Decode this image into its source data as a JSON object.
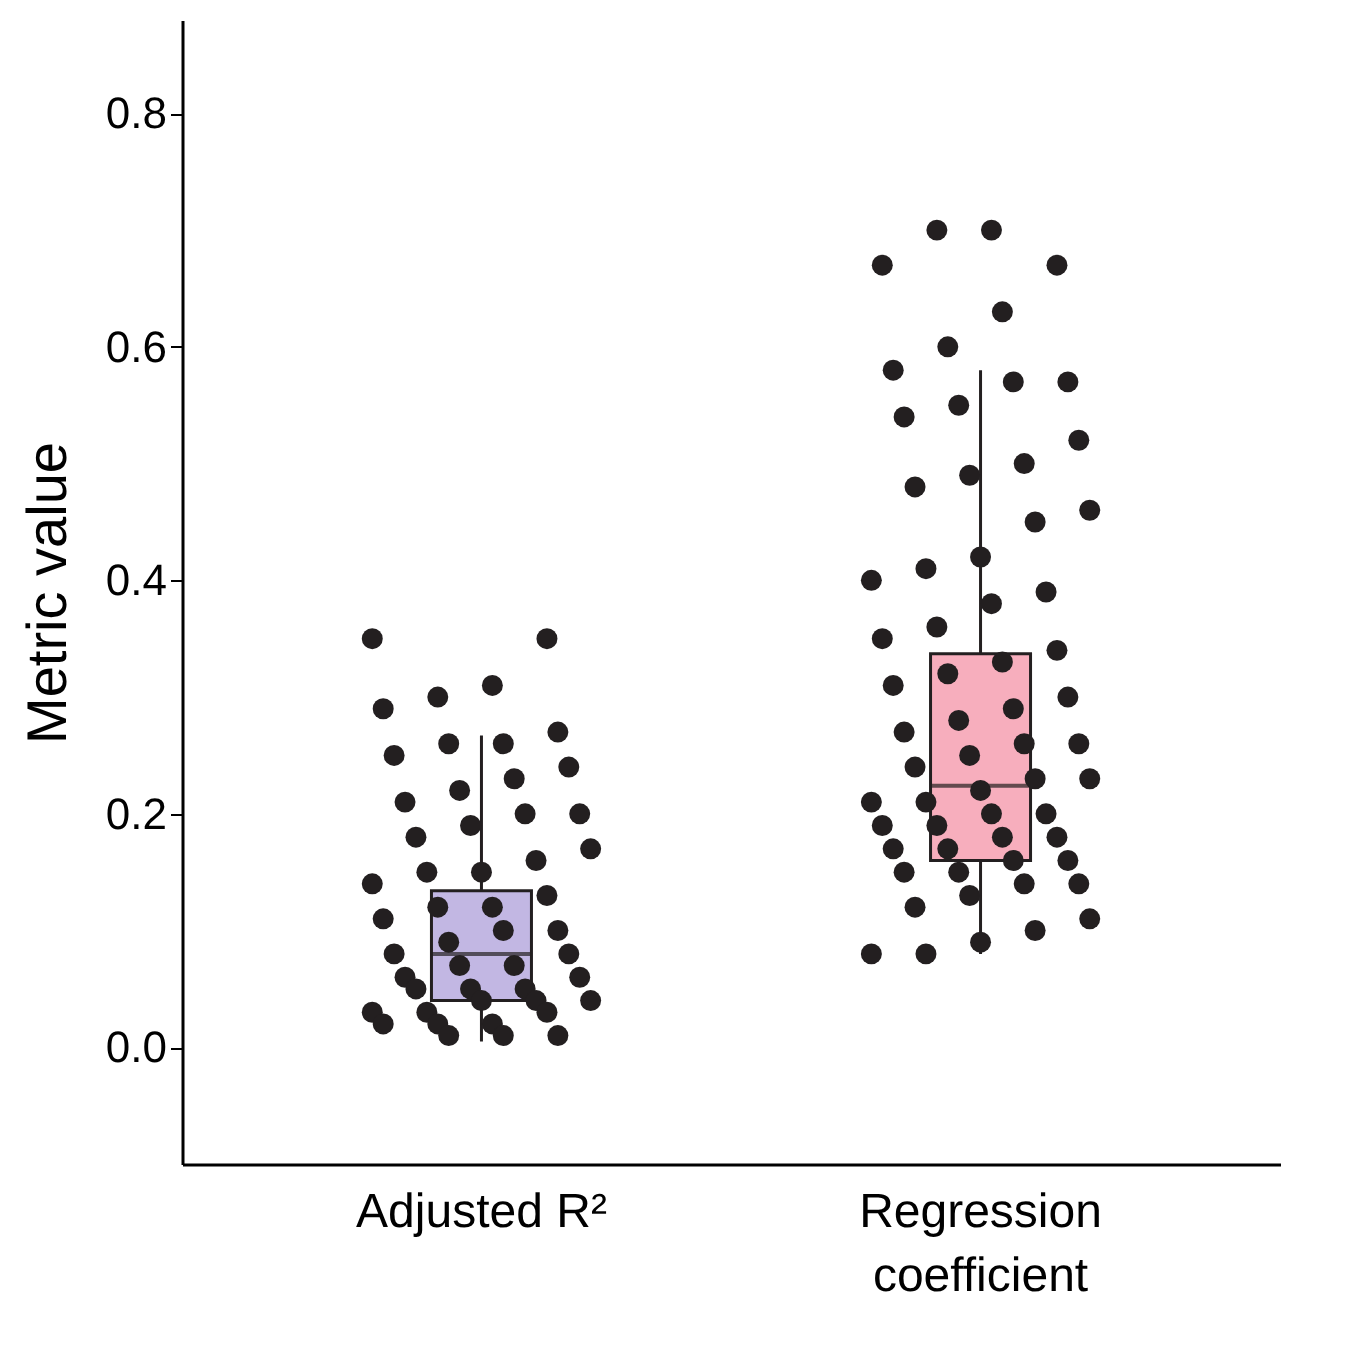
{
  "chart_data": {
    "type": "box",
    "ylabel": "Metric value",
    "categories": [
      "Adjusted R²",
      "Regression coefficient"
    ],
    "colors": [
      "#c2b7e3",
      "#f7aebd"
    ],
    "boxes": [
      {
        "low": 0.005,
        "q1": 0.04,
        "median": 0.08,
        "q3": 0.134,
        "high": 0.267
      },
      {
        "low": 0.08,
        "q1": 0.16,
        "median": 0.224,
        "q3": 0.337,
        "high": 0.58
      }
    ],
    "series": [
      {
        "type": "scatter",
        "color": "#231f20",
        "x": [
          "Adjusted R²",
          "Adjusted R²",
          "Adjusted R²",
          "Adjusted R²",
          "Adjusted R²",
          "Adjusted R²",
          "Adjusted R²",
          "Adjusted R²",
          "Adjusted R²",
          "Adjusted R²",
          "Adjusted R²",
          "Adjusted R²",
          "Adjusted R²",
          "Adjusted R²",
          "Adjusted R²",
          "Adjusted R²",
          "Adjusted R²",
          "Adjusted R²",
          "Adjusted R²",
          "Adjusted R²",
          "Adjusted R²",
          "Adjusted R²",
          "Adjusted R²",
          "Adjusted R²",
          "Adjusted R²",
          "Adjusted R²",
          "Adjusted R²",
          "Adjusted R²",
          "Adjusted R²",
          "Adjusted R²",
          "Adjusted R²",
          "Adjusted R²",
          "Adjusted R²",
          "Adjusted R²",
          "Adjusted R²",
          "Adjusted R²",
          "Adjusted R²",
          "Adjusted R²",
          "Adjusted R²",
          "Adjusted R²",
          "Adjusted R²",
          "Adjusted R²",
          "Adjusted R²",
          "Adjusted R²",
          "Adjusted R²",
          "Adjusted R²",
          "Adjusted R²",
          "Adjusted R²",
          "Adjusted R²",
          "Adjusted R²"
        ],
        "values": [
          0.35,
          0.35,
          0.31,
          0.3,
          0.29,
          0.27,
          0.26,
          0.26,
          0.25,
          0.24,
          0.23,
          0.22,
          0.21,
          0.2,
          0.2,
          0.19,
          0.18,
          0.17,
          0.16,
          0.15,
          0.15,
          0.14,
          0.13,
          0.12,
          0.12,
          0.11,
          0.1,
          0.1,
          0.09,
          0.08,
          0.08,
          0.07,
          0.07,
          0.06,
          0.06,
          0.05,
          0.05,
          0.05,
          0.04,
          0.04,
          0.04,
          0.03,
          0.03,
          0.03,
          0.02,
          0.02,
          0.02,
          0.01,
          0.01,
          0.01
        ]
      },
      {
        "type": "scatter",
        "color": "#231f20",
        "x": [
          "Regression coefficient",
          "Regression coefficient",
          "Regression coefficient",
          "Regression coefficient",
          "Regression coefficient",
          "Regression coefficient",
          "Regression coefficient",
          "Regression coefficient",
          "Regression coefficient",
          "Regression coefficient",
          "Regression coefficient",
          "Regression coefficient",
          "Regression coefficient",
          "Regression coefficient",
          "Regression coefficient",
          "Regression coefficient",
          "Regression coefficient",
          "Regression coefficient",
          "Regression coefficient",
          "Regression coefficient",
          "Regression coefficient",
          "Regression coefficient",
          "Regression coefficient",
          "Regression coefficient",
          "Regression coefficient",
          "Regression coefficient",
          "Regression coefficient",
          "Regression coefficient",
          "Regression coefficient",
          "Regression coefficient",
          "Regression coefficient",
          "Regression coefficient",
          "Regression coefficient",
          "Regression coefficient",
          "Regression coefficient",
          "Regression coefficient",
          "Regression coefficient",
          "Regression coefficient",
          "Regression coefficient",
          "Regression coefficient",
          "Regression coefficient",
          "Regression coefficient",
          "Regression coefficient",
          "Regression coefficient",
          "Regression coefficient",
          "Regression coefficient",
          "Regression coefficient",
          "Regression coefficient",
          "Regression coefficient",
          "Regression coefficient",
          "Regression coefficient",
          "Regression coefficient",
          "Regression coefficient",
          "Regression coefficient",
          "Regression coefficient",
          "Regression coefficient",
          "Regression coefficient",
          "Regression coefficient",
          "Regression coefficient",
          "Regression coefficient",
          "Regression coefficient",
          "Regression coefficient"
        ],
        "values": [
          0.7,
          0.7,
          0.67,
          0.67,
          0.63,
          0.6,
          0.58,
          0.57,
          0.57,
          0.55,
          0.54,
          0.52,
          0.5,
          0.49,
          0.48,
          0.46,
          0.45,
          0.42,
          0.41,
          0.4,
          0.39,
          0.38,
          0.36,
          0.35,
          0.34,
          0.33,
          0.32,
          0.31,
          0.3,
          0.29,
          0.28,
          0.27,
          0.26,
          0.26,
          0.25,
          0.24,
          0.23,
          0.23,
          0.22,
          0.21,
          0.21,
          0.2,
          0.2,
          0.19,
          0.19,
          0.18,
          0.18,
          0.17,
          0.17,
          0.16,
          0.16,
          0.15,
          0.15,
          0.14,
          0.14,
          0.13,
          0.12,
          0.11,
          0.1,
          0.09,
          0.08,
          0.08
        ]
      }
    ],
    "ylim": [
      -0.1,
      0.88
    ],
    "yticks": [
      {
        "value": 0,
        "label": "0.0"
      },
      {
        "value": 0.2,
        "label": "0.2"
      },
      {
        "value": 0.4,
        "label": "0.4"
      },
      {
        "value": 0.6,
        "label": "0.6"
      },
      {
        "value": 0.8,
        "label": "0.8"
      }
    ],
    "grid": false,
    "legend": false,
    "marker": "circle"
  }
}
